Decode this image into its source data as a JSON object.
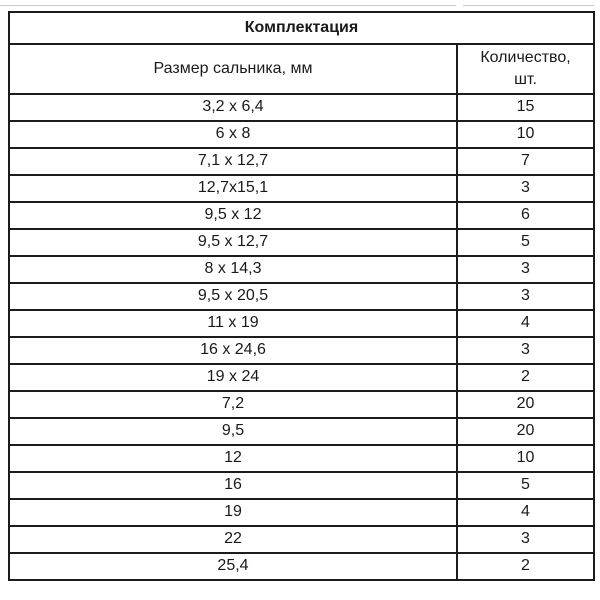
{
  "artifact": {
    "color": "#c9c9c9"
  },
  "table": {
    "title": "Комплектация",
    "columns": {
      "size": "Размер сальника, мм",
      "quantity": "Количество, шт."
    },
    "border_color": "#1c1c1c",
    "rows": [
      [
        "3,2 x 6,4",
        "15"
      ],
      [
        "6 x 8",
        "10"
      ],
      [
        "7,1 x 12,7",
        "7"
      ],
      [
        "12,7x15,1",
        "3"
      ],
      [
        "9,5 x 12",
        "6"
      ],
      [
        "9,5 x 12,7",
        "5"
      ],
      [
        "8 x 14,3",
        "3"
      ],
      [
        "9,5 x 20,5",
        "3"
      ],
      [
        "11 x 19",
        "4"
      ],
      [
        "16 x 24,6",
        "3"
      ],
      [
        "19 x 24",
        "2"
      ],
      [
        "7,2",
        "20"
      ],
      [
        "9,5",
        "20"
      ],
      [
        "12",
        "10"
      ],
      [
        "16",
        "5"
      ],
      [
        "19",
        "4"
      ],
      [
        "22",
        "3"
      ],
      [
        "25,4",
        "2"
      ]
    ]
  }
}
